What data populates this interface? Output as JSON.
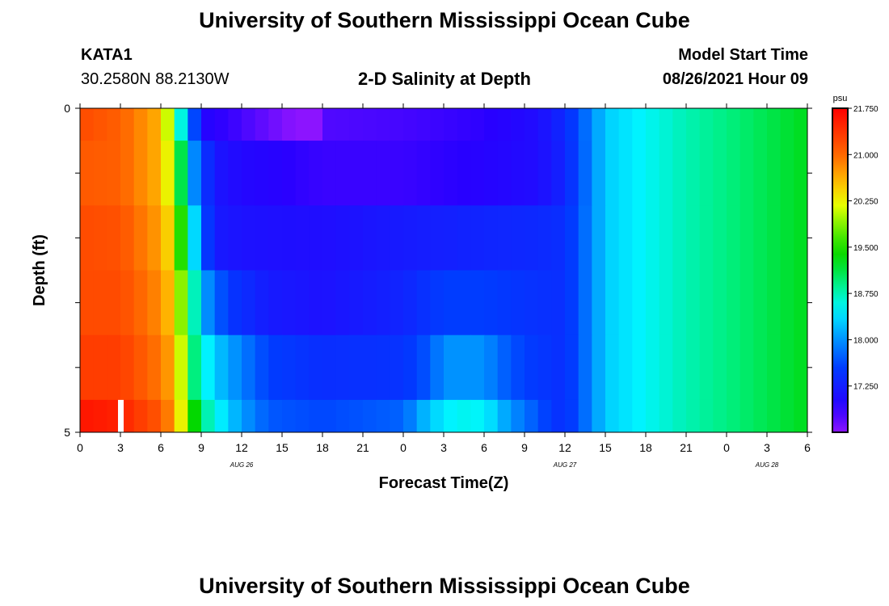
{
  "header": {
    "title": "University of Southern Mississippi Ocean Cube",
    "footer_title": "University of Southern Mississippi Ocean Cube",
    "station_id": "KATA1",
    "coords": "30.2580N  88.2130W",
    "plot_title": "2-D Salinity at Depth",
    "start_label": "Model Start Time",
    "start_value": "08/26/2021 Hour 09"
  },
  "chart_data": {
    "type": "heatmap",
    "title": "2-D Salinity at Depth",
    "xlabel": "Forecast Time(Z)",
    "ylabel": "Depth (ft)",
    "x_hours": [
      0,
      54
    ],
    "ylim": [
      0,
      5
    ],
    "y_tick_labels": [
      {
        "v": 0,
        "label": "0"
      },
      {
        "v": 5,
        "label": "5"
      }
    ],
    "x_tick_labels": [
      {
        "h": 0,
        "label": "0"
      },
      {
        "h": 3,
        "label": "3"
      },
      {
        "h": 6,
        "label": "6"
      },
      {
        "h": 9,
        "label": "9"
      },
      {
        "h": 12,
        "label": "12"
      },
      {
        "h": 15,
        "label": "15"
      },
      {
        "h": 18,
        "label": "18"
      },
      {
        "h": 21,
        "label": "21"
      },
      {
        "h": 24,
        "label": "0"
      },
      {
        "h": 27,
        "label": "3"
      },
      {
        "h": 30,
        "label": "6"
      },
      {
        "h": 33,
        "label": "9"
      },
      {
        "h": 36,
        "label": "12"
      },
      {
        "h": 39,
        "label": "15"
      },
      {
        "h": 42,
        "label": "18"
      },
      {
        "h": 45,
        "label": "21"
      },
      {
        "h": 48,
        "label": "0"
      },
      {
        "h": 51,
        "label": "3"
      },
      {
        "h": 54,
        "label": "6"
      }
    ],
    "date_labels": [
      {
        "h": 12,
        "label": "AUG 26"
      },
      {
        "h": 36,
        "label": "AUG 27"
      },
      {
        "h": 51,
        "label": "AUG 28"
      }
    ],
    "colorbar": {
      "unit": "psu",
      "min": 16.5,
      "max": 21.75,
      "tick_values": [
        21.75,
        21.0,
        20.25,
        19.5,
        18.75,
        18.0,
        17.25
      ],
      "tick_labels": [
        "21.750",
        "21.000",
        "20.250",
        "19.500",
        "18.750",
        "18.000",
        "17.250"
      ]
    },
    "depth_layers": [
      {
        "y0": 0,
        "y1": 0.5,
        "samples": [
          [
            0,
            21.2
          ],
          [
            3,
            21.05
          ],
          [
            6,
            20.6
          ],
          [
            6.8,
            19.8
          ],
          [
            7.5,
            18.6
          ],
          [
            8.5,
            17.6
          ],
          [
            9.5,
            16.95
          ],
          [
            12,
            16.8
          ],
          [
            16,
            16.5
          ],
          [
            18,
            16.3
          ],
          [
            18.5,
            16.75
          ],
          [
            24,
            16.8
          ],
          [
            30,
            16.9
          ],
          [
            34,
            17.05
          ],
          [
            36,
            17.35
          ],
          [
            38,
            17.95
          ],
          [
            39,
            18.3
          ],
          [
            45,
            18.75
          ],
          [
            54,
            19.25
          ]
        ]
      },
      {
        "y0": 0.5,
        "y1": 1.5,
        "samples": [
          [
            0,
            21.1
          ],
          [
            3,
            21.05
          ],
          [
            6,
            20.6
          ],
          [
            7,
            19.9
          ],
          [
            8,
            18.3
          ],
          [
            9,
            17.6
          ],
          [
            10,
            17.15
          ],
          [
            12,
            17.0
          ],
          [
            18,
            16.85
          ],
          [
            24,
            16.85
          ],
          [
            30,
            16.95
          ],
          [
            34,
            17.05
          ],
          [
            36,
            17.3
          ],
          [
            38,
            17.95
          ],
          [
            39,
            18.3
          ],
          [
            45,
            18.75
          ],
          [
            54,
            19.25
          ]
        ]
      },
      {
        "y0": 1.5,
        "y1": 2.5,
        "samples": [
          [
            0,
            21.2
          ],
          [
            3,
            21.15
          ],
          [
            6,
            20.7
          ],
          [
            7,
            20.2
          ],
          [
            7.5,
            19.5
          ],
          [
            8.3,
            18.6
          ],
          [
            9,
            17.75
          ],
          [
            10,
            17.2
          ],
          [
            12,
            17.1
          ],
          [
            18,
            17.05
          ],
          [
            24,
            17.2
          ],
          [
            30,
            17.3
          ],
          [
            34,
            17.35
          ],
          [
            36,
            17.4
          ],
          [
            38,
            17.95
          ],
          [
            39,
            18.3
          ],
          [
            45,
            18.75
          ],
          [
            54,
            19.25
          ]
        ]
      },
      {
        "y0": 2.5,
        "y1": 3.5,
        "samples": [
          [
            0,
            21.2
          ],
          [
            3,
            21.2
          ],
          [
            6,
            20.8
          ],
          [
            7,
            20.4
          ],
          [
            7.8,
            19.6
          ],
          [
            8.6,
            18.6
          ],
          [
            9.4,
            18.0
          ],
          [
            11,
            17.5
          ],
          [
            14,
            17.2
          ],
          [
            18,
            17.1
          ],
          [
            24,
            17.3
          ],
          [
            27,
            17.55
          ],
          [
            30,
            17.55
          ],
          [
            33,
            17.45
          ],
          [
            36,
            17.4
          ],
          [
            38,
            17.95
          ],
          [
            39,
            18.3
          ],
          [
            45,
            18.75
          ],
          [
            54,
            19.25
          ]
        ]
      },
      {
        "y0": 3.5,
        "y1": 4.5,
        "samples": [
          [
            0,
            21.3
          ],
          [
            3,
            21.3
          ],
          [
            6,
            20.9
          ],
          [
            7,
            20.6
          ],
          [
            7.8,
            19.8
          ],
          [
            8.6,
            18.8
          ],
          [
            10,
            18.3
          ],
          [
            12,
            17.9
          ],
          [
            14,
            17.55
          ],
          [
            18,
            17.4
          ],
          [
            24,
            17.45
          ],
          [
            26,
            17.7
          ],
          [
            27,
            18.0
          ],
          [
            30,
            18.0
          ],
          [
            31,
            17.8
          ],
          [
            33,
            17.55
          ],
          [
            36,
            17.4
          ],
          [
            38,
            17.95
          ],
          [
            39,
            18.3
          ],
          [
            45,
            18.75
          ],
          [
            54,
            19.25
          ]
        ]
      },
      {
        "y0": 4.5,
        "y1": 5,
        "samples": [
          [
            0,
            21.6
          ],
          [
            3,
            21.5
          ],
          [
            6,
            21.1
          ],
          [
            7,
            20.7
          ],
          [
            8,
            19.8
          ],
          [
            9,
            18.9
          ],
          [
            10.5,
            18.45
          ],
          [
            12,
            18.05
          ],
          [
            14,
            17.7
          ],
          [
            18,
            17.6
          ],
          [
            24,
            17.75
          ],
          [
            26,
            18.3
          ],
          [
            28,
            18.55
          ],
          [
            30,
            18.5
          ],
          [
            32,
            18.0
          ],
          [
            35,
            17.5
          ],
          [
            36,
            17.4
          ],
          [
            38,
            17.95
          ],
          [
            39,
            18.3
          ],
          [
            45,
            18.75
          ],
          [
            54,
            19.25
          ]
        ]
      }
    ],
    "marker": {
      "type": "white-bar",
      "hour": 3,
      "depth_top": 4.5,
      "depth_bottom": 5
    }
  }
}
